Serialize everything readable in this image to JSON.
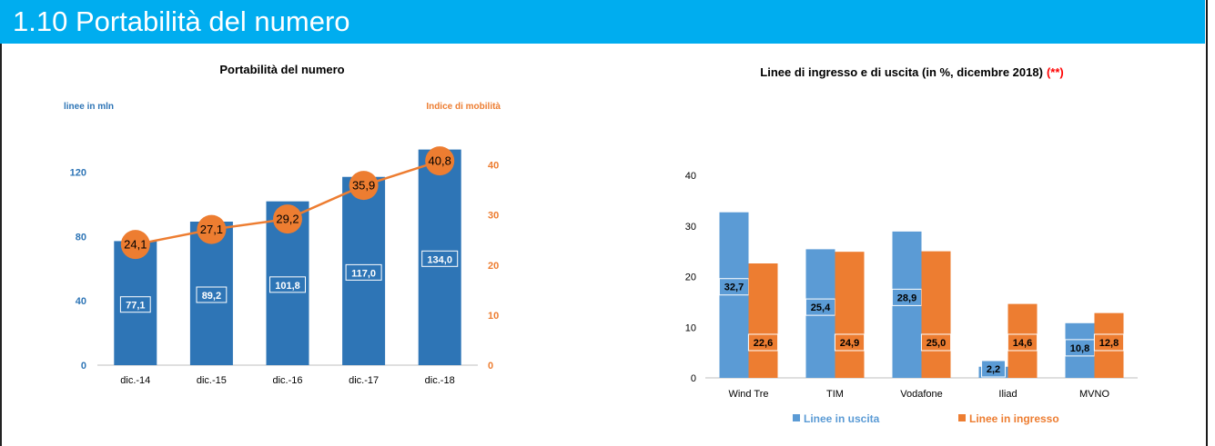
{
  "header": {
    "title": "1.10 Portabilità del numero"
  },
  "colors": {
    "header_bg": "#00adef",
    "blue": "#2e75b6",
    "orange": "#ed7d31",
    "light_blue": "#5b9bd5",
    "red": "#ff0000"
  },
  "chart_data": [
    {
      "type": "bar",
      "title": "Portabilità del numero",
      "ylabel": "linee in mln",
      "y2label": "Indice di mobilità",
      "categories": [
        "dic.-14",
        "dic.-15",
        "dic.-16",
        "dic.-17",
        "dic.-18"
      ],
      "series": [
        {
          "name": "linee in mln",
          "type": "bar",
          "axis": "left",
          "values": [
            77.1,
            89.2,
            101.8,
            117.0,
            134.0
          ],
          "labels": [
            "77,1",
            "89,2",
            "101,8",
            "117,0",
            "134,0"
          ]
        },
        {
          "name": "Indice di mobilità",
          "type": "line",
          "axis": "right",
          "values": [
            24.1,
            27.1,
            29.2,
            35.9,
            40.8
          ],
          "labels": [
            "24,1",
            "27,1",
            "29,2",
            "35,9",
            "40,8"
          ]
        }
      ],
      "ylim": [
        0,
        140
      ],
      "yticks": [
        0,
        40,
        80,
        120
      ],
      "y2lim": [
        0,
        45
      ],
      "y2ticks": [
        0,
        10,
        20,
        30,
        40
      ],
      "grid": false
    },
    {
      "type": "bar",
      "title": "Linee di ingresso e di uscita (in %, dicembre 2018)",
      "title_note": "(**)",
      "categories": [
        "Wind Tre",
        "TIM",
        "Vodafone",
        "Iliad",
        "MVNO"
      ],
      "series": [
        {
          "name": "Linee in uscita",
          "values": [
            32.7,
            25.4,
            28.9,
            2.2,
            10.8
          ],
          "labels": [
            "32,7",
            "25,4",
            "28,9",
            "2,2",
            "10,8"
          ]
        },
        {
          "name": "Linee in ingresso",
          "values": [
            22.6,
            24.9,
            25.0,
            14.6,
            12.8
          ],
          "labels": [
            "22,6",
            "24,9",
            "25,0",
            "14,6",
            "12,8"
          ]
        }
      ],
      "ylim": [
        0,
        40
      ],
      "yticks": [
        0,
        10,
        20,
        30,
        40
      ],
      "legend": "bottom",
      "grid": false
    }
  ]
}
